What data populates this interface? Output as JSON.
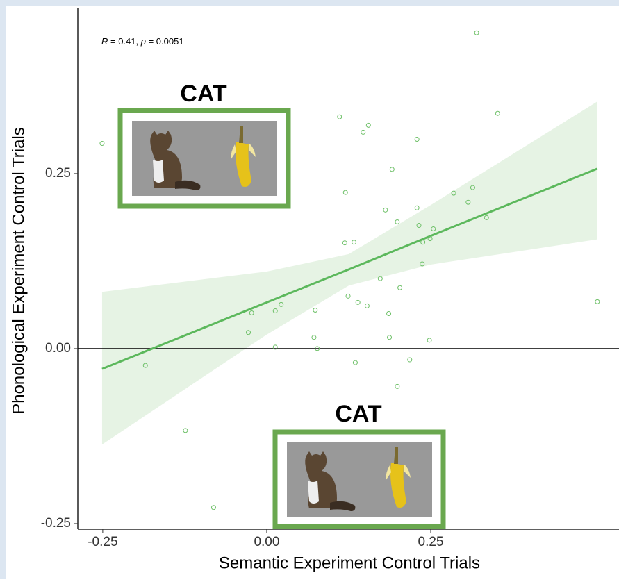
{
  "chart_data": {
    "type": "scatter",
    "x_label": "Semantic Experiment Control Trials",
    "y_label": "Phonological Experiment Control Trials",
    "annotation": [
      "R",
      " = 0.41, ",
      "p",
      " = 0.0051"
    ],
    "insets": [
      "CAT",
      "CAT"
    ],
    "color": "#6cbf66",
    "x": [
      -0.251,
      0.32,
      0.352,
      0.111,
      0.155,
      0.147,
      0.229,
      0.191,
      0.12,
      0.285,
      0.314,
      0.307,
      0.181,
      0.229,
      0.335,
      0.199,
      0.232,
      0.254,
      0.249,
      0.238,
      0.119,
      0.133,
      0.237,
      0.173,
      0.203,
      0.124,
      0.139,
      0.153,
      0.022,
      0.013,
      -0.023,
      0.074,
      0.186,
      0.504,
      -0.028,
      0.072,
      0.187,
      0.248,
      0.013,
      0.077,
      0.135,
      0.218,
      -0.185,
      0.199,
      -0.124,
      -0.081
    ],
    "y": [
      0.293,
      0.451,
      0.336,
      0.331,
      0.319,
      0.309,
      0.299,
      0.256,
      0.223,
      0.222,
      0.23,
      0.209,
      0.198,
      0.201,
      0.187,
      0.181,
      0.176,
      0.171,
      0.157,
      0.152,
      0.151,
      0.152,
      0.121,
      0.1,
      0.087,
      0.075,
      0.066,
      0.061,
      0.063,
      0.054,
      0.051,
      0.055,
      0.05,
      0.067,
      0.023,
      0.016,
      0.016,
      0.012,
      0.002,
      0.0,
      -0.02,
      -0.016,
      -0.024,
      -0.054,
      -0.117,
      -0.227
    ],
    "fit": {
      "color": "#5cb85c",
      "band_color": "#e6f3e4",
      "x": [
        -0.251,
        0,
        0.125,
        0.25,
        0.504
      ],
      "y": [
        -0.029,
        0.066,
        0.113,
        0.161,
        0.257
      ],
      "lower": [
        -0.137,
        0.02,
        0.09,
        0.12,
        0.156
      ],
      "upper": [
        0.081,
        0.11,
        0.135,
        0.205,
        0.353
      ]
    },
    "hline": 0,
    "xlim": [
      -0.288,
      0.537
    ],
    "ylim": [
      -0.258,
      0.486
    ],
    "xticks": [
      -0.25,
      {
        "value": 0,
        "label": "0.00"
      },
      0.25
    ],
    "yticks": [
      -0.25,
      {
        "value": 0,
        "label": "0.00"
      },
      0.25
    ]
  }
}
